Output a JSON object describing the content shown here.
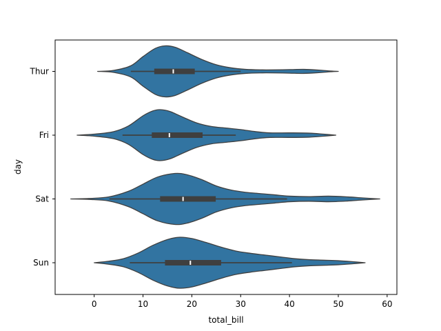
{
  "chart_data": {
    "type": "violin",
    "orientation": "horizontal",
    "title": "",
    "xlabel": "total_bill",
    "ylabel": "day",
    "xlim": [
      -8,
      62
    ],
    "xticks": [
      0,
      10,
      20,
      30,
      40,
      50,
      60
    ],
    "categories": [
      "Thur",
      "Fri",
      "Sat",
      "Sun"
    ],
    "fill_color": "#3274a1",
    "edge_color": "#3f3f3f",
    "grid": false,
    "legend": "none",
    "series": [
      {
        "category": "Thur",
        "range": [
          0.7,
          50.0
        ],
        "box": {
          "q1": 12.3,
          "median": 16.2,
          "q3": 20.6,
          "whisker_low": 7.5,
          "whisker_high": 30.0
        },
        "profile": [
          [
            0.7,
            0.0
          ],
          [
            4.0,
            0.04
          ],
          [
            7.5,
            0.22
          ],
          [
            10.0,
            0.58
          ],
          [
            12.5,
            0.9
          ],
          [
            14.5,
            1.0
          ],
          [
            16.5,
            0.95
          ],
          [
            19.0,
            0.74
          ],
          [
            22.0,
            0.47
          ],
          [
            25.0,
            0.26
          ],
          [
            28.0,
            0.14
          ],
          [
            31.0,
            0.08
          ],
          [
            34.0,
            0.06
          ],
          [
            37.0,
            0.06
          ],
          [
            40.0,
            0.07
          ],
          [
            43.0,
            0.08
          ],
          [
            46.0,
            0.05
          ],
          [
            48.0,
            0.02
          ],
          [
            50.0,
            0.0
          ]
        ]
      },
      {
        "category": "Fri",
        "range": [
          -3.5,
          49.5
        ],
        "box": {
          "q1": 11.8,
          "median": 15.4,
          "q3": 22.2,
          "whisker_low": 5.8,
          "whisker_high": 29.0
        },
        "profile": [
          [
            -3.5,
            0.0
          ],
          [
            0.0,
            0.04
          ],
          [
            4.0,
            0.14
          ],
          [
            7.0,
            0.36
          ],
          [
            10.0,
            0.76
          ],
          [
            12.0,
            0.95
          ],
          [
            13.5,
            1.0
          ],
          [
            15.5,
            0.93
          ],
          [
            18.0,
            0.72
          ],
          [
            21.0,
            0.48
          ],
          [
            24.0,
            0.34
          ],
          [
            27.0,
            0.28
          ],
          [
            30.0,
            0.22
          ],
          [
            33.0,
            0.14
          ],
          [
            36.0,
            0.09
          ],
          [
            40.0,
            0.09
          ],
          [
            44.0,
            0.08
          ],
          [
            47.0,
            0.04
          ],
          [
            49.5,
            0.0
          ]
        ]
      },
      {
        "category": "Sat",
        "range": [
          -4.8,
          58.5
        ],
        "box": {
          "q1": 13.5,
          "median": 18.2,
          "q3": 24.9,
          "whisker_low": 3.1,
          "whisker_high": 39.5
        },
        "profile": [
          [
            -4.8,
            0.0
          ],
          [
            -1.0,
            0.02
          ],
          [
            3.0,
            0.08
          ],
          [
            7.0,
            0.3
          ],
          [
            10.0,
            0.58
          ],
          [
            13.0,
            0.86
          ],
          [
            16.5,
            1.0
          ],
          [
            19.0,
            0.95
          ],
          [
            22.0,
            0.76
          ],
          [
            25.0,
            0.51
          ],
          [
            28.0,
            0.35
          ],
          [
            31.0,
            0.26
          ],
          [
            34.0,
            0.21
          ],
          [
            37.0,
            0.16
          ],
          [
            40.0,
            0.11
          ],
          [
            44.0,
            0.09
          ],
          [
            48.0,
            0.11
          ],
          [
            52.0,
            0.08
          ],
          [
            55.0,
            0.04
          ],
          [
            58.5,
            0.0
          ]
        ]
      },
      {
        "category": "Sun",
        "range": [
          0.0,
          55.5
        ],
        "box": {
          "q1": 14.5,
          "median": 19.7,
          "q3": 26.0,
          "whisker_low": 7.3,
          "whisker_high": 40.5
        },
        "profile": [
          [
            0.0,
            0.0
          ],
          [
            3.0,
            0.06
          ],
          [
            6.0,
            0.16
          ],
          [
            9.0,
            0.38
          ],
          [
            12.0,
            0.68
          ],
          [
            15.0,
            0.91
          ],
          [
            17.5,
            1.0
          ],
          [
            20.0,
            0.95
          ],
          [
            23.0,
            0.79
          ],
          [
            26.0,
            0.61
          ],
          [
            29.0,
            0.46
          ],
          [
            32.0,
            0.37
          ],
          [
            35.0,
            0.3
          ],
          [
            38.0,
            0.23
          ],
          [
            41.0,
            0.16
          ],
          [
            44.0,
            0.12
          ],
          [
            47.0,
            0.1
          ],
          [
            50.0,
            0.08
          ],
          [
            53.0,
            0.04
          ],
          [
            55.5,
            0.0
          ]
        ]
      }
    ]
  }
}
